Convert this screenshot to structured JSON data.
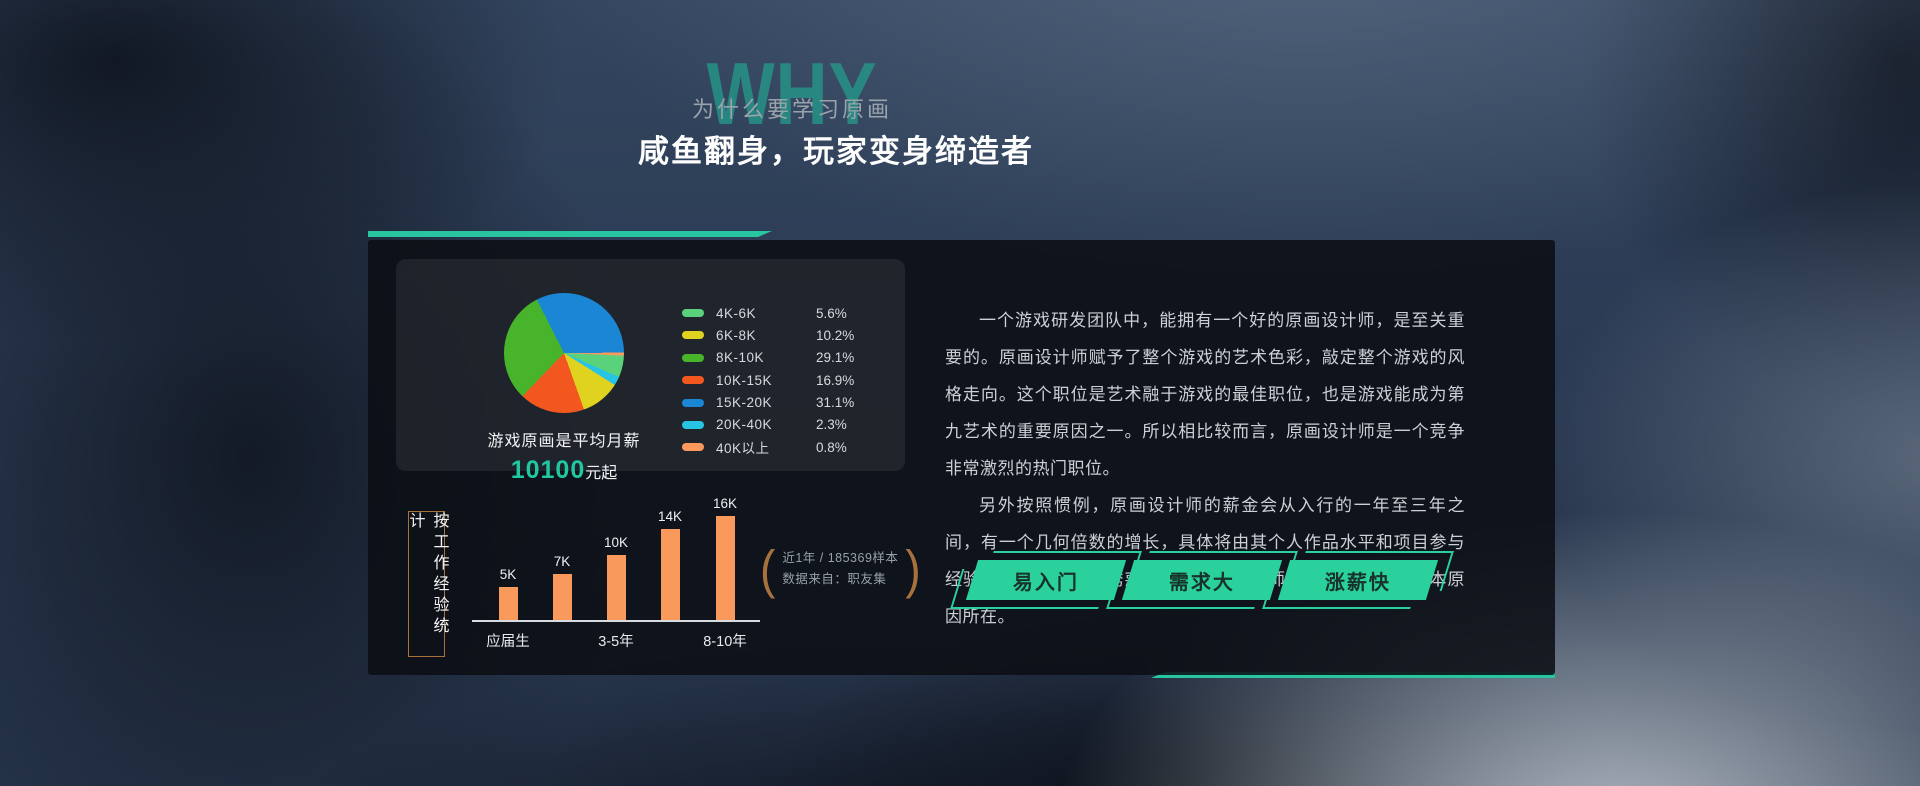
{
  "header": {
    "watermark": "WHY",
    "subtitle": "为什么要学习原画",
    "title": "咸鱼翻身，玩家变身缔造者"
  },
  "pie_card": {
    "caption": "游戏原画是平均月薪",
    "value": "10100",
    "value_suffix": "元起"
  },
  "chart_data": [
    {
      "type": "pie",
      "title": "游戏原画是平均月薪10100元起",
      "labels": [
        "4K-6K",
        "6K-8K",
        "8K-10K",
        "10K-15K",
        "15K-20K",
        "20K-40K",
        "40K以上"
      ],
      "values": [
        5.6,
        10.2,
        29.1,
        16.9,
        31.1,
        2.3,
        0.8
      ],
      "unit": "%",
      "colors": [
        "#5ad27c",
        "#e0d31f",
        "#47b42b",
        "#f1571f",
        "#1b86d3",
        "#27c5e3",
        "#f99a5c"
      ],
      "legend_position": "right",
      "start_angle_deg": -27,
      "clockwise_order": [
        4,
        6,
        0,
        5,
        1,
        3,
        2
      ]
    },
    {
      "type": "bar",
      "categories": [
        "应届生",
        "",
        "3-5年",
        "",
        "8-10年"
      ],
      "values": [
        5,
        7,
        10,
        14,
        16
      ],
      "value_labels": [
        "5K",
        "7K",
        "10K",
        "14K",
        "16K"
      ],
      "unit": "K",
      "color": "#f99a5c",
      "ylim": [
        0,
        17
      ],
      "grid": false,
      "side_label": "按工作经验统计",
      "note_lines": [
        "近1年 / 185369样本",
        "数据来自：职友集"
      ]
    }
  ],
  "bar_section": {
    "side_label": "按工作经验统计",
    "note_line1": "近1年 / 185369样本",
    "note_line2": "数据来自：职友集"
  },
  "article": {
    "paragraphs": [
      "一个游戏研发团队中，能拥有一个好的原画设计师，是至关重要的。原画设计师赋予了整个游戏的艺术色彩，敲定整个游戏的风格走向。这个职位是艺术融于游戏的最佳职位，也是游戏能成为第九艺术的重要原因之一。所以相比较而言，原画设计师是一个竞争非常激烈的热门职位。",
      "另外按照惯例，原画设计师的薪金会从入行的一年至三年之间，有一个几何倍数的增长，具体将由其个人作品水平和项目参与经验决定。但高薪的诱惑，也是原画设计师成为热门职位的根本原因所在。"
    ]
  },
  "tags": [
    {
      "label": "易入门"
    },
    {
      "label": "需求大"
    },
    {
      "label": "涨薪快"
    }
  ],
  "colors": {
    "accent": "#29c5a0",
    "bar": "#f99a5c",
    "bracket": "#a7713c",
    "salary_value": "#1fc8a0"
  }
}
